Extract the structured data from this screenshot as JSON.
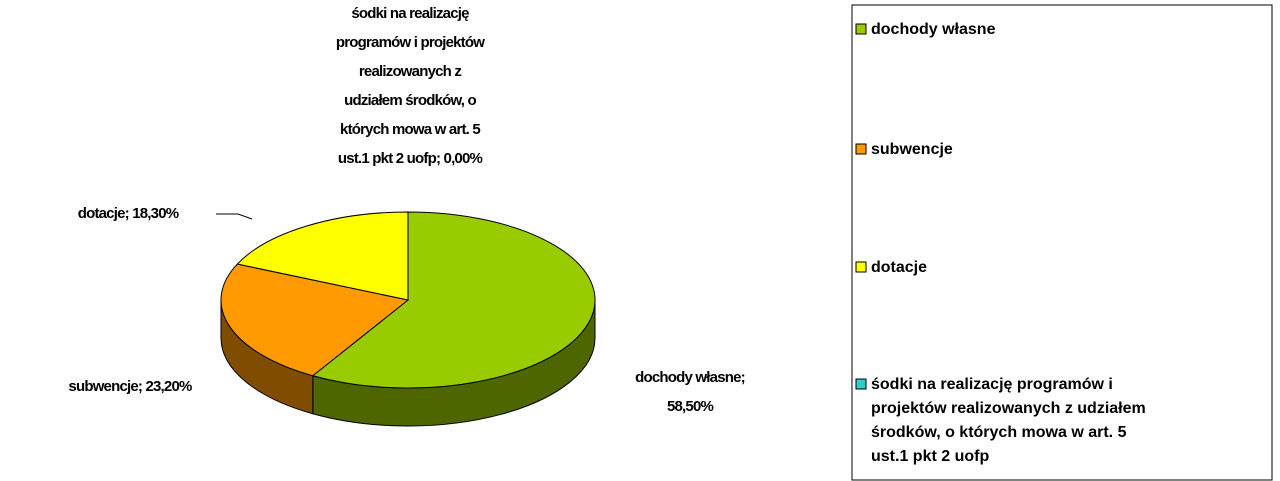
{
  "chart_data": {
    "type": "pie",
    "categories": [
      "dochody własne",
      "subwencje",
      "dotacje",
      "śodki na realizację programów i projektów realizowanych z udziałem środków, o których mowa w art. 5 ust.1 pkt 2 uofp"
    ],
    "values": [
      58.5,
      23.2,
      18.3,
      0.0
    ],
    "value_labels": [
      "dochody własne; 58,50%",
      "subwencje; 23,20%",
      "dotacje; 18,30%",
      "śodki na realizację programów i projektów realizowanych z udziałem środków, o których mowa w art. 5 ust.1 pkt 2 uofp; 0,00%"
    ],
    "colors": [
      "#99cc00",
      "#ff9900",
      "#ffff00",
      "#33cccc"
    ],
    "legend": "right"
  }
}
